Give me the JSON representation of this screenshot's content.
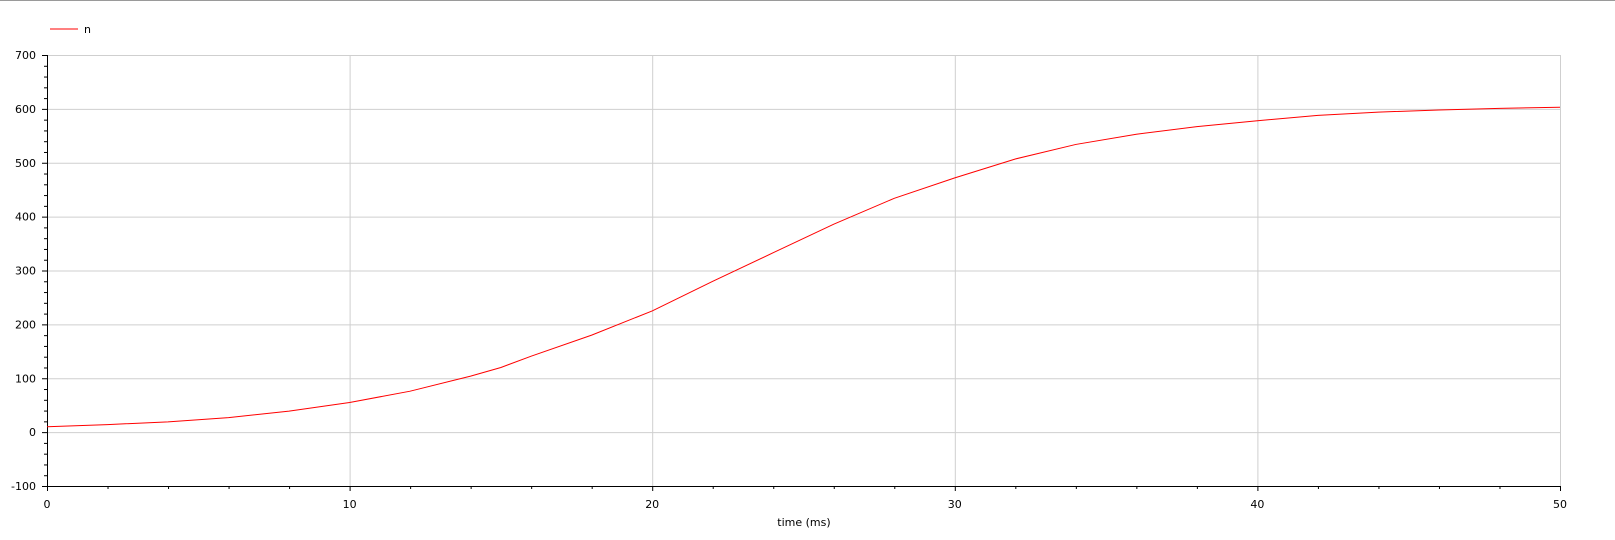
{
  "chart_data": {
    "type": "line",
    "title": "",
    "xlabel": "time (ms)",
    "ylabel": "",
    "xlim": [
      0,
      50
    ],
    "ylim": [
      -100,
      700
    ],
    "xticks": [
      0,
      10,
      20,
      30,
      40,
      50
    ],
    "yticks": [
      -100,
      0,
      100,
      200,
      300,
      400,
      500,
      600,
      700
    ],
    "x_tick_labels": [
      "0",
      "10",
      "20",
      "30",
      "40",
      "50"
    ],
    "y_tick_labels": [
      "-100",
      "0",
      "100",
      "200",
      "300",
      "400",
      "500",
      "600",
      "700"
    ],
    "grid": true,
    "legend_position": "top-left",
    "series": [
      {
        "name": "n",
        "color": "#ff0000",
        "x": [
          0,
          2,
          4,
          6,
          8,
          10,
          12,
          14,
          15,
          16,
          18,
          20,
          22,
          24,
          26,
          28,
          30,
          32,
          34,
          36,
          38,
          40,
          42,
          44,
          46,
          48,
          50
        ],
        "y": [
          10,
          14,
          19,
          27,
          39,
          55,
          76,
          104,
          120,
          141,
          180,
          225,
          280,
          333,
          386,
          434,
          472,
          507,
          534,
          553,
          567,
          578,
          588,
          594,
          598,
          601,
          603
        ]
      }
    ]
  }
}
